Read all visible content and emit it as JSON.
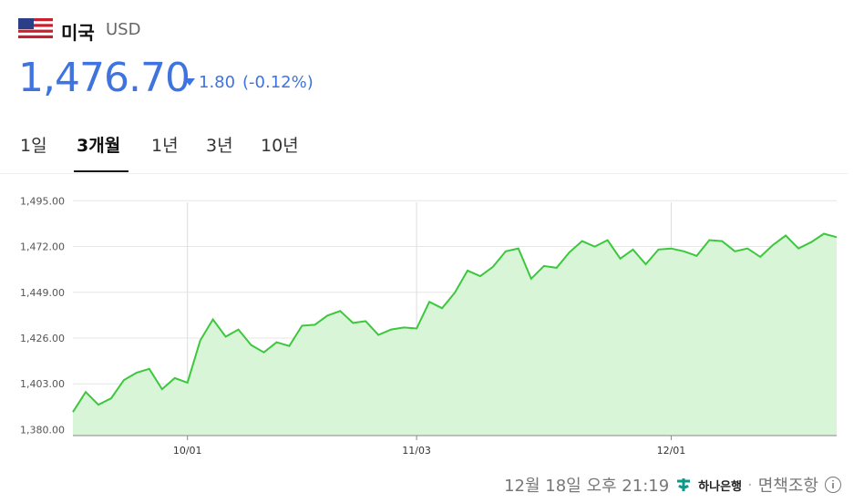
{
  "header": {
    "country": "미국",
    "currency": "USD",
    "price": "1,476.70",
    "change": "1.80",
    "change_pct": "(-0.12%)"
  },
  "tabs": [
    "1일",
    "3개월",
    "1년",
    "3년",
    "10년"
  ],
  "active_tab": 1,
  "footer": {
    "timestamp": "12월 18일 오후 21:19",
    "bank": "하나은행",
    "disclaimer": "면책조항"
  },
  "chart_data": {
    "type": "area",
    "categories": [
      null,
      null,
      null,
      null,
      null,
      null,
      null,
      null,
      null,
      "10/01",
      null,
      null,
      null,
      null,
      null,
      null,
      null,
      null,
      null,
      null,
      null,
      null,
      null,
      null,
      null,
      null,
      null,
      "11/03",
      null,
      null,
      null,
      null,
      null,
      null,
      null,
      null,
      null,
      null,
      null,
      null,
      null,
      null,
      null,
      null,
      null,
      null,
      null,
      "12/01",
      null,
      null,
      null,
      null,
      null,
      null,
      null,
      null,
      null,
      null,
      null,
      null,
      null
    ],
    "values": [
      1388.8,
      1398.9,
      1392.5,
      1395.7,
      1404.9,
      1408.6,
      1410.5,
      1400.3,
      1405.9,
      1403.6,
      1424.8,
      1435.4,
      1426.7,
      1430.3,
      1422.5,
      1418.8,
      1423.9,
      1422.0,
      1432.2,
      1432.7,
      1437.3,
      1439.6,
      1433.6,
      1434.5,
      1427.6,
      1430.3,
      1431.3,
      1430.8,
      1444.2,
      1441.0,
      1448.8,
      1459.9,
      1457.1,
      1461.8,
      1469.6,
      1471.0,
      1455.8,
      1462.2,
      1461.3,
      1469.1,
      1474.7,
      1471.9,
      1475.2,
      1465.9,
      1470.5,
      1463.1,
      1470.5,
      1471.0,
      1469.6,
      1467.3,
      1475.2,
      1474.7,
      1469.6,
      1471.0,
      1466.8,
      1472.8,
      1477.5,
      1471.0,
      1474.2,
      1478.4,
      1476.7
    ],
    "color": "#3cc83c",
    "area_color": "#d8f5d8",
    "ylim": [
      1377,
      1502
    ],
    "yticks": [
      {
        "value": 1380,
        "label": "1,380.00"
      },
      {
        "value": 1403,
        "label": "1,403.00"
      },
      {
        "value": 1426,
        "label": "1,426.00"
      },
      {
        "value": 1449,
        "label": "1,449.00"
      },
      {
        "value": 1472,
        "label": "1,472.00"
      },
      {
        "value": 1495,
        "label": "1,495.00"
      }
    ],
    "grid": true
  }
}
